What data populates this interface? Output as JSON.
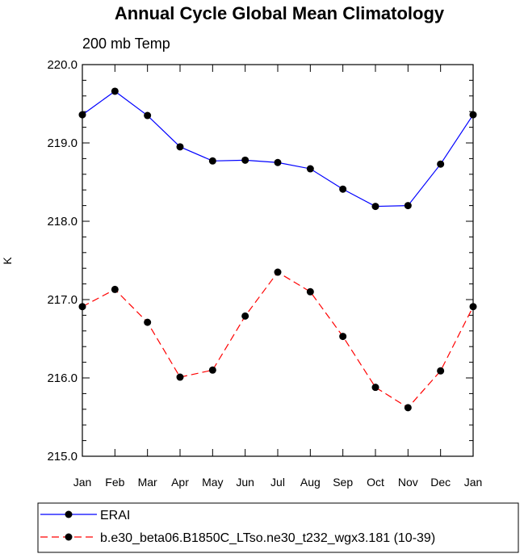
{
  "chart_data": {
    "type": "line",
    "title": "Annual Cycle Global Mean Climatology",
    "subtitle": "200 mb Temp",
    "xlabel": "",
    "ylabel": "K",
    "categories": [
      "Jan",
      "Feb",
      "Mar",
      "Apr",
      "May",
      "Jun",
      "Jul",
      "Aug",
      "Sep",
      "Oct",
      "Nov",
      "Dec",
      "Jan"
    ],
    "ylim": [
      215.0,
      220.0
    ],
    "yticks": [
      "215.0",
      "216.0",
      "217.0",
      "218.0",
      "219.0",
      "220.0"
    ],
    "legend_position": "bottom",
    "series": [
      {
        "name": "ERAI",
        "color": "#0000ff",
        "dash": "solid",
        "values": [
          219.36,
          219.66,
          219.35,
          218.95,
          218.77,
          218.78,
          218.75,
          218.67,
          218.41,
          218.19,
          218.2,
          218.73,
          219.36
        ]
      },
      {
        "name": "b.e30_beta06.B1850C_LTso.ne30_t232_wgx3.181 (10-39)",
        "color": "#ff0000",
        "dash": "dashed",
        "values": [
          216.91,
          217.13,
          216.71,
          216.01,
          216.1,
          216.79,
          217.35,
          217.1,
          216.53,
          215.88,
          215.62,
          216.09,
          216.91
        ]
      }
    ]
  }
}
